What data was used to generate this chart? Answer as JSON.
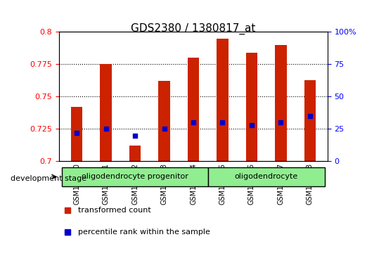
{
  "title": "GDS2380 / 1380817_at",
  "samples": [
    "GSM138280",
    "GSM138281",
    "GSM138282",
    "GSM138283",
    "GSM138284",
    "GSM138285",
    "GSM138286",
    "GSM138287",
    "GSM138288"
  ],
  "red_values": [
    0.742,
    0.775,
    0.712,
    0.762,
    0.78,
    0.795,
    0.784,
    0.79,
    0.763
  ],
  "blue_values": [
    0.722,
    0.725,
    0.72,
    0.725,
    0.73,
    0.73,
    0.728,
    0.73,
    0.735
  ],
  "ylim_left": [
    0.7,
    0.8
  ],
  "ylim_right": [
    0,
    100
  ],
  "yticks_left": [
    0.7,
    0.725,
    0.75,
    0.775,
    0.8
  ],
  "yticks_right": [
    0,
    25,
    50,
    75,
    100
  ],
  "yticks_right_labels": [
    "0",
    "25",
    "50",
    "75",
    "100%"
  ],
  "groups": [
    {
      "label": "oligodendrocyte progenitor",
      "start": 0,
      "end": 4,
      "color": "#90EE90"
    },
    {
      "label": "oligodendrocyte",
      "start": 5,
      "end": 8,
      "color": "#90EE90"
    }
  ],
  "bar_color": "#CC2200",
  "dot_color": "#0000CC",
  "group_label": "development stage",
  "legend_items": [
    {
      "label": "transformed count",
      "color": "#CC2200"
    },
    {
      "label": "percentile rank within the sample",
      "color": "#0000CC"
    }
  ]
}
